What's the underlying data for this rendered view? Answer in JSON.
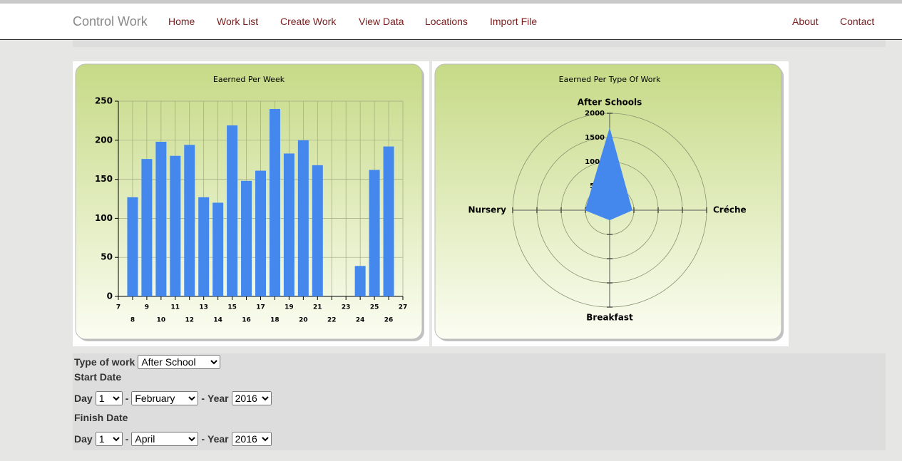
{
  "nav": {
    "brand": "Control Work",
    "links": [
      "Home",
      "Work List",
      "Create Work",
      "View Data",
      "Locations",
      "Import File"
    ],
    "right_links": [
      "About",
      "Contact"
    ]
  },
  "chart_data": [
    {
      "type": "bar",
      "title": "Eaerned Per Week",
      "x": [
        8,
        9,
        10,
        11,
        12,
        13,
        14,
        15,
        16,
        17,
        18,
        19,
        20,
        21,
        24,
        25,
        26
      ],
      "values": [
        127,
        176,
        198,
        180,
        194,
        127,
        120,
        219,
        148,
        161,
        240,
        183,
        200,
        168,
        39,
        162,
        192
      ],
      "color": "#4488ee",
      "xlim": [
        7,
        27
      ],
      "xticks": [
        7,
        8,
        9,
        10,
        11,
        12,
        13,
        14,
        15,
        16,
        17,
        18,
        19,
        20,
        21,
        22,
        23,
        24,
        25,
        26,
        27
      ],
      "ylim": [
        0,
        250
      ],
      "yticks": [
        0,
        50,
        100,
        150,
        200,
        250
      ],
      "grid": true
    },
    {
      "type": "radar",
      "title": "Eaerned Per Type Of Work",
      "categories": [
        "After Schools",
        "Créche",
        "Breakfast",
        "Nursery"
      ],
      "values": [
        1680,
        460,
        200,
        500
      ],
      "color": "#4488ee",
      "rlim": [
        0,
        2000
      ],
      "rticks": [
        0,
        500,
        1000,
        1500,
        2000
      ]
    }
  ],
  "form": {
    "type_label": "Type of work",
    "type_value": "After School",
    "start_label": "Start Date",
    "finish_label": "Finish Date",
    "day_label": "Day",
    "year_label": "Year",
    "separator": "-",
    "start": {
      "day": "1",
      "month": "February",
      "year": "2016"
    },
    "finish": {
      "day": "1",
      "month": "April",
      "year": "2016"
    }
  }
}
